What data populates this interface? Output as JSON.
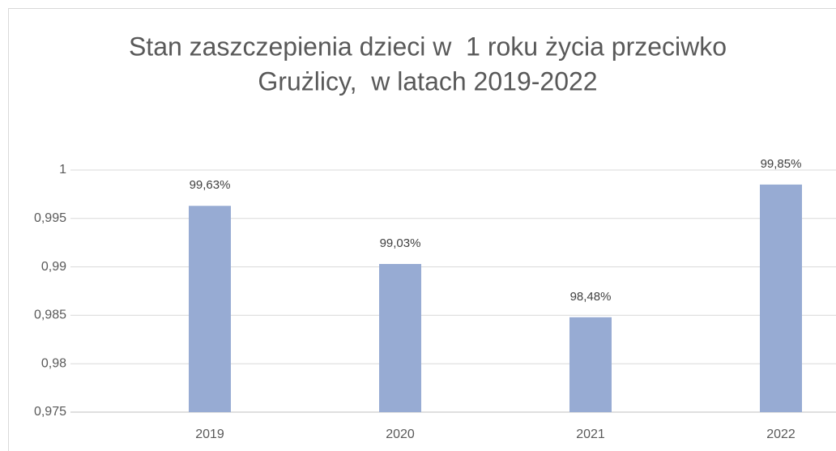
{
  "chart_data": {
    "type": "bar",
    "title": [
      "Stan zaszczepienia dzieci w  1 roku życia przeciwko",
      "Grużlicy,  w latach 2019-2022"
    ],
    "categories": [
      "2019",
      "2020",
      "2021",
      "2022"
    ],
    "values": [
      0.9963,
      0.9903,
      0.9848,
      0.9985
    ],
    "value_labels": [
      "99,63%",
      "99,03%",
      "98,48%",
      "99,85%"
    ],
    "color": "#97abd3",
    "ylim": [
      0.975,
      1
    ],
    "yticks": [
      {
        "value": 0.975,
        "label": "0,975"
      },
      {
        "value": 0.98,
        "label": "0,98"
      },
      {
        "value": 0.985,
        "label": "0,985"
      },
      {
        "value": 0.99,
        "label": "0,99"
      },
      {
        "value": 0.995,
        "label": "0,995"
      },
      1
    ],
    "grid": true
  }
}
